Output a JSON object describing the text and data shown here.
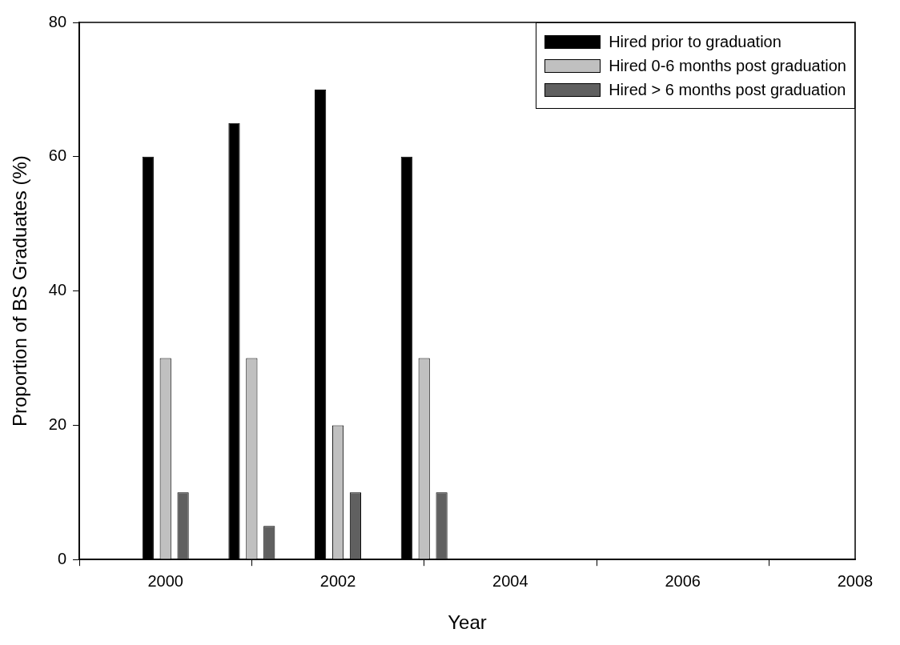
{
  "chart_data": {
    "type": "bar",
    "xlabel": "Year",
    "ylabel": "Proportion of BS Graduates (%)",
    "x": [
      2000,
      2001,
      2002,
      2003
    ],
    "series": [
      {
        "name": "Hired prior to graduation",
        "color": "#000000",
        "values": [
          60,
          65,
          70,
          60
        ]
      },
      {
        "name": "Hired 0-6 months post graduation",
        "color": "#c0c0c0",
        "values": [
          30,
          30,
          20,
          30
        ]
      },
      {
        "name": "Hired > 6 months post graduation",
        "color": "#606060",
        "values": [
          10,
          5,
          10,
          10
        ]
      }
    ],
    "xlim": [
      1999,
      2008
    ],
    "xticks": [
      2000,
      2002,
      2004,
      2006,
      2008
    ],
    "ylim": [
      0,
      80
    ],
    "yticks": [
      0,
      20,
      40,
      60,
      80
    ],
    "grid": false,
    "legend": "top right"
  }
}
